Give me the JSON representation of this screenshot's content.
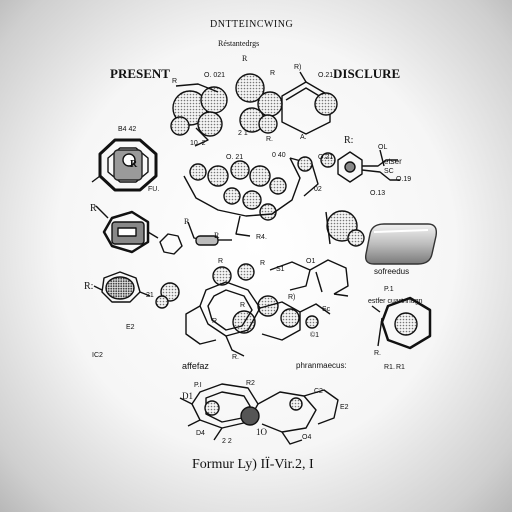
{
  "header": {
    "title": "DNTTEINCWING",
    "subtitle": "Réstantedrgs",
    "left_heading": "PRESENT",
    "right_heading": "DISCLURE",
    "r_top": "R"
  },
  "labels": {
    "a1": "R",
    "a2": "O. 021",
    "a3": "R",
    "a4": "R)",
    "a5": "O.21",
    "a6": "10. 2",
    "a7": "2 1",
    "a8": "R.",
    "a9": "A.",
    "b1": "B4 42",
    "b2": "R",
    "b3": "FU.",
    "c1": "O. 21",
    "c2": "0 40",
    "c3": "O.21",
    "c4": "02",
    "c5": "R:",
    "d1": "R",
    "d2": "R",
    "d3": "R",
    "d4": "R4.",
    "e1": "R:",
    "e2": "21",
    "e3": "R",
    "e4": "R",
    "e5": "S1",
    "f1": "O1",
    "f2": "Sc",
    "g1": "E2",
    "g2": "IC2",
    "h1": "R",
    "h2": "R",
    "h3": "R.",
    "i1": "R)",
    "i2": "©1",
    "ester_label": "etser",
    "ester_1": "OL",
    "ester_2": "SC",
    "ester_3": "O.19",
    "ester_4": "O.13",
    "product_label": "sofreedus",
    "right_label": "estfer cuartnhugn",
    "right_1": "P.1",
    "right_2": "R.",
    "right_3": "R1.",
    "right_4": "R1",
    "left_mid": "affefaz",
    "mid_label": "phranmaecus:",
    "bottom_1": "P.I",
    "bottom_2": "R2",
    "bottom_3": "1O",
    "bottom_4": "O4",
    "bottom_5": "D1",
    "bottom_6": "D4",
    "bottom_7": "C2",
    "bottom_8": "E2",
    "bottom_9": "2 2"
  },
  "footer": {
    "caption": "Formur Ly) IÏ-Vir.2, I"
  }
}
